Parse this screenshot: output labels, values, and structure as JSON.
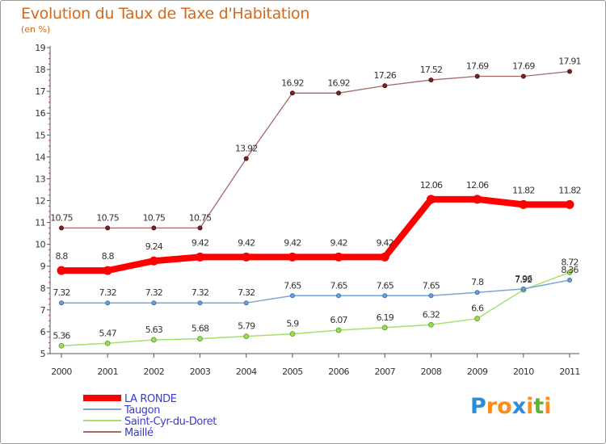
{
  "chart_data": {
    "type": "line",
    "title": "Evolution du Taux de Taxe d'Habitation",
    "subtitle": "(en %)",
    "xlabel": "",
    "ylabel": "",
    "ylim": [
      5,
      19
    ],
    "yticks": [
      "5",
      "6",
      "7",
      "8",
      "9",
      "10",
      "11",
      "12",
      "13",
      "14",
      "15",
      "16",
      "17",
      "18",
      "19"
    ],
    "x": [
      "2000",
      "2001",
      "2002",
      "2003",
      "2004",
      "2005",
      "2006",
      "2007",
      "2008",
      "2009",
      "2010",
      "2011"
    ],
    "grid": false,
    "legend_position": "bottom-left",
    "series": [
      {
        "name": "LA RONDE",
        "color": "#ff0000",
        "values": [
          8.8,
          8.8,
          9.24,
          9.42,
          9.42,
          9.42,
          9.42,
          9.42,
          12.06,
          12.06,
          11.82,
          11.82
        ],
        "labels": [
          "8.8",
          "8.8",
          "9.24",
          "9.42",
          "9.42",
          "9.42",
          "9.42",
          "9.42",
          "12.06",
          "12.06",
          "11.82",
          "11.82"
        ]
      },
      {
        "name": "Taugon",
        "color": "#6a9fd4",
        "values": [
          7.32,
          7.32,
          7.32,
          7.32,
          7.32,
          7.65,
          7.65,
          7.65,
          7.65,
          7.8,
          7.96,
          8.36
        ],
        "labels": [
          "7.32",
          "7.32",
          "7.32",
          "7.32",
          "7.32",
          "7.65",
          "7.65",
          "7.65",
          "7.65",
          "7.8",
          "7.96",
          "8.36"
        ]
      },
      {
        "name": "Saint-Cyr-du-Doret",
        "color": "#99dd55",
        "values": [
          5.36,
          5.47,
          5.63,
          5.68,
          5.79,
          5.9,
          6.07,
          6.19,
          6.32,
          6.6,
          7.92,
          8.72
        ],
        "labels": [
          "5.36",
          "5.47",
          "5.63",
          "5.68",
          "5.79",
          "5.9",
          "6.07",
          "6.19",
          "6.32",
          "6.6",
          "7.92",
          "8.72"
        ]
      },
      {
        "name": "Maillé",
        "color": "#8b3a3a",
        "values": [
          10.75,
          10.75,
          10.75,
          10.75,
          13.92,
          16.92,
          16.92,
          17.26,
          17.52,
          17.69,
          17.69,
          17.91
        ],
        "labels": [
          "10.75",
          "10.75",
          "10.75",
          "10.75",
          "13.92",
          "16.92",
          "16.92",
          "17.26",
          "17.52",
          "17.69",
          "17.69",
          "17.91"
        ]
      }
    ]
  },
  "logo": {
    "parts": [
      "P",
      "r",
      "o",
      "x",
      "i",
      "t",
      "i"
    ],
    "colors": [
      "#2a8fd8",
      "#ff8c1a",
      "#ff8c1a",
      "#2a8fd8",
      "#ff8c1a",
      "#5bb82e",
      "#ff8c1a"
    ]
  }
}
